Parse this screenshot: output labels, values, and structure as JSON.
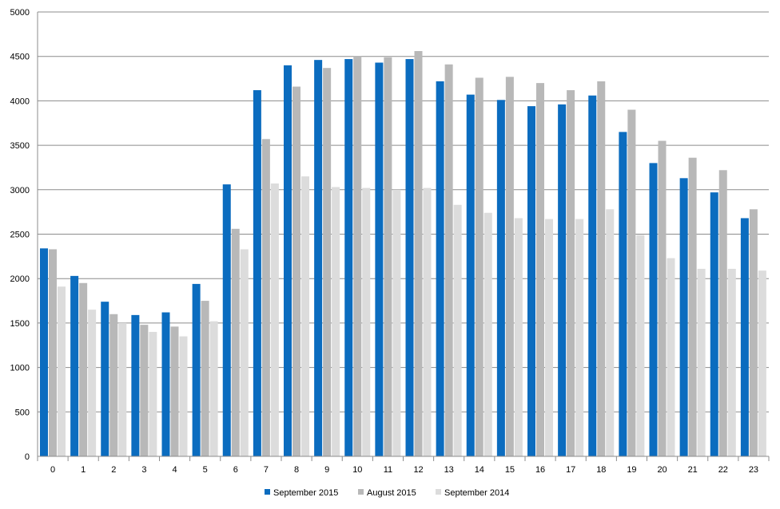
{
  "chart_data": {
    "type": "bar",
    "categories": [
      "0",
      "1",
      "2",
      "3",
      "4",
      "5",
      "6",
      "7",
      "8",
      "9",
      "10",
      "11",
      "12",
      "13",
      "14",
      "15",
      "16",
      "17",
      "18",
      "19",
      "20",
      "21",
      "22",
      "23"
    ],
    "series": [
      {
        "name": "September 2015",
        "color": "#0b6cbf",
        "values": [
          2340,
          2030,
          1740,
          1590,
          1620,
          1940,
          3060,
          4120,
          4400,
          4460,
          4470,
          4430,
          4470,
          4220,
          4070,
          4010,
          3940,
          3960,
          4060,
          3650,
          3300,
          3130,
          2970,
          2680
        ]
      },
      {
        "name": "August 2015",
        "color": "#b8b8b8",
        "values": [
          2330,
          1950,
          1600,
          1480,
          1460,
          1750,
          2560,
          3570,
          4160,
          4370,
          4500,
          4490,
          4560,
          4410,
          4260,
          4270,
          4200,
          4120,
          4220,
          3900,
          3550,
          3360,
          3220,
          2780
        ]
      },
      {
        "name": "September 2014",
        "color": "#dcdcdc",
        "values": [
          1910,
          1650,
          1500,
          1400,
          1350,
          1520,
          2330,
          3070,
          3150,
          3030,
          3020,
          3000,
          3020,
          2830,
          2740,
          2680,
          2670,
          2670,
          2780,
          2490,
          2230,
          2110,
          2110,
          2090
        ]
      }
    ],
    "title": "",
    "xlabel": "",
    "ylabel": "",
    "ylim": [
      0,
      5000
    ],
    "yticks": [
      0,
      500,
      1000,
      1500,
      2000,
      2500,
      3000,
      3500,
      4000,
      4500,
      5000
    ],
    "grid": true,
    "legend_position": "bottom"
  }
}
